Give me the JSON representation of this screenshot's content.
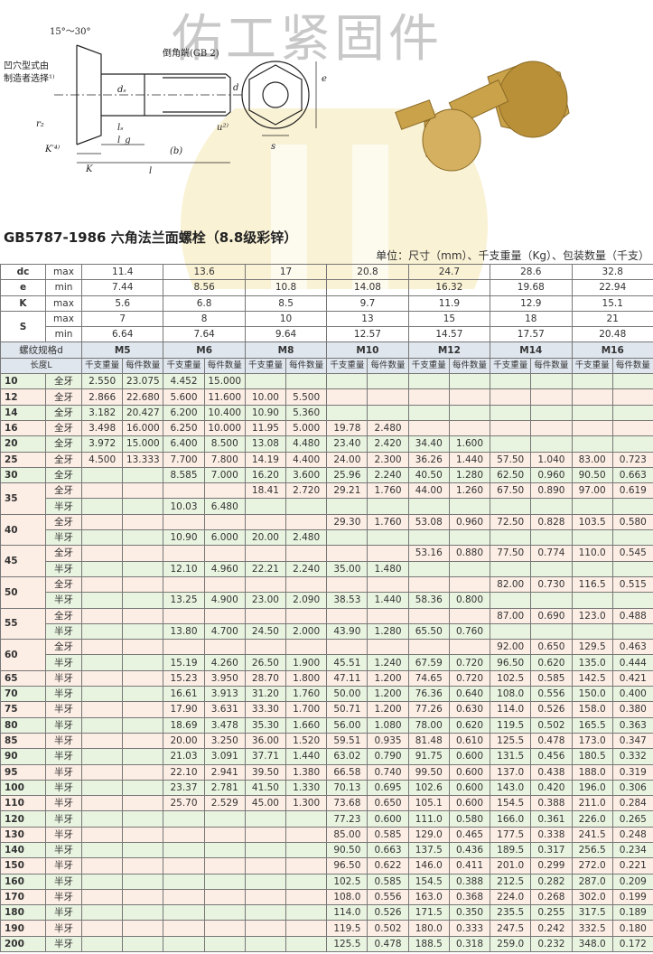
{
  "watermark": "佑工紧固件",
  "drawing": {
    "labels": [
      "15°～30°",
      "凹穴型式由",
      "制造者选择¹⁾",
      "倒角端(GB 2)",
      "dₛ",
      "d",
      "r₂",
      "K′⁴⁾",
      "K",
      "lₛ",
      "l_g",
      "(b)",
      "l",
      "u²⁾",
      "s",
      "e"
    ]
  },
  "title": "GB5787-1986 六角法兰面螺栓（8.8级彩锌）",
  "unit_note": "单位：尺寸（mm）、千支重量（Kg）、包装数量（千支）",
  "dimensions": [
    {
      "name": "dc",
      "rows": [
        {
          "limit": "max",
          "values": [
            "11.4",
            "13.6",
            "17",
            "20.8",
            "24.7",
            "28.6",
            "32.8"
          ]
        }
      ]
    },
    {
      "name": "e",
      "rows": [
        {
          "limit": "min",
          "values": [
            "7.44",
            "8.56",
            "10.8",
            "14.08",
            "16.32",
            "19.68",
            "22.94"
          ]
        }
      ]
    },
    {
      "name": "K",
      "rows": [
        {
          "limit": "max",
          "values": [
            "5.6",
            "6.8",
            "8.5",
            "9.7",
            "11.9",
            "12.9",
            "15.1"
          ]
        }
      ]
    },
    {
      "name": "S",
      "rows": [
        {
          "limit": "max",
          "values": [
            "7",
            "8",
            "10",
            "13",
            "15",
            "18",
            "21"
          ]
        },
        {
          "limit": "min",
          "values": [
            "6.64",
            "7.64",
            "9.64",
            "12.57",
            "14.57",
            "17.57",
            "20.48"
          ]
        }
      ]
    }
  ],
  "header": {
    "thread_label": "螺纹规格d",
    "sizes": [
      "M5",
      "M6",
      "M8",
      "M10",
      "M12",
      "M14",
      "M16"
    ],
    "length_label": "长度L",
    "sub_headers": [
      "千支重量",
      "每件数量"
    ]
  },
  "rows": [
    {
      "length": "10",
      "parts": [
        {
          "type": "全牙",
          "cells": [
            "2.550",
            "23.075",
            "4.452",
            "15.000",
            null,
            null,
            null,
            null,
            null,
            null,
            null,
            null,
            null,
            null
          ]
        }
      ]
    },
    {
      "length": "12",
      "parts": [
        {
          "type": "全牙",
          "cells": [
            "2.866",
            "22.680",
            "5.600",
            "11.600",
            "10.00",
            "5.500",
            null,
            null,
            null,
            null,
            null,
            null,
            null,
            null
          ]
        }
      ]
    },
    {
      "length": "14",
      "parts": [
        {
          "type": "全牙",
          "cells": [
            "3.182",
            "20.427",
            "6.200",
            "10.400",
            "10.90",
            "5.360",
            null,
            null,
            null,
            null,
            null,
            null,
            null,
            null
          ]
        }
      ]
    },
    {
      "length": "16",
      "parts": [
        {
          "type": "全牙",
          "cells": [
            "3.498",
            "16.000",
            "6.250",
            "10.000",
            "11.95",
            "5.000",
            "19.78",
            "2.480",
            null,
            null,
            null,
            null,
            null,
            null
          ]
        }
      ]
    },
    {
      "length": "20",
      "parts": [
        {
          "type": "全牙",
          "cells": [
            "3.972",
            "15.000",
            "6.400",
            "8.500",
            "13.08",
            "4.480",
            "23.40",
            "2.420",
            "34.40",
            "1.600",
            null,
            null,
            null,
            null
          ]
        }
      ]
    },
    {
      "length": "25",
      "parts": [
        {
          "type": "全牙",
          "cells": [
            "4.500",
            "13.333",
            "7.700",
            "7.800",
            "14.19",
            "4.400",
            "24.00",
            "2.300",
            "36.26",
            "1.440",
            "57.50",
            "1.040",
            "83.00",
            "0.723"
          ]
        }
      ]
    },
    {
      "length": "30",
      "parts": [
        {
          "type": "全牙",
          "cells": [
            null,
            null,
            "8.585",
            "7.000",
            "16.20",
            "3.600",
            "25.96",
            "2.240",
            "40.50",
            "1.280",
            "62.50",
            "0.960",
            "90.50",
            "0.663"
          ]
        }
      ]
    },
    {
      "length": "35",
      "parts": [
        {
          "type": "全牙",
          "cells": [
            null,
            null,
            null,
            null,
            "18.41",
            "2.720",
            "29.21",
            "1.760",
            "44.00",
            "1.260",
            "67.50",
            "0.890",
            "97.00",
            "0.619"
          ]
        },
        {
          "type": "半牙",
          "cells": [
            null,
            null,
            "10.03",
            "6.480",
            null,
            null,
            null,
            null,
            null,
            null,
            null,
            null,
            null,
            null
          ]
        }
      ]
    },
    {
      "length": "40",
      "parts": [
        {
          "type": "全牙",
          "cells": [
            null,
            null,
            null,
            null,
            null,
            null,
            "29.30",
            "1.760",
            "53.08",
            "0.960",
            "72.50",
            "0.828",
            "103.5",
            "0.580"
          ]
        },
        {
          "type": "半牙",
          "cells": [
            null,
            null,
            "10.90",
            "6.000",
            "20.00",
            "2.480",
            null,
            null,
            null,
            null,
            null,
            null,
            null,
            null
          ]
        }
      ]
    },
    {
      "length": "45",
      "parts": [
        {
          "type": "全牙",
          "cells": [
            null,
            null,
            null,
            null,
            null,
            null,
            null,
            null,
            "53.16",
            "0.880",
            "77.50",
            "0.774",
            "110.0",
            "0.545"
          ]
        },
        {
          "type": "半牙",
          "cells": [
            null,
            null,
            "12.10",
            "4.960",
            "22.21",
            "2.240",
            "35.00",
            "1.480",
            null,
            null,
            null,
            null,
            null,
            null
          ]
        }
      ]
    },
    {
      "length": "50",
      "parts": [
        {
          "type": "全牙",
          "cells": [
            null,
            null,
            null,
            null,
            null,
            null,
            null,
            null,
            null,
            null,
            "82.00",
            "0.730",
            "116.5",
            "0.515"
          ]
        },
        {
          "type": "半牙",
          "cells": [
            null,
            null,
            "13.25",
            "4.900",
            "23.00",
            "2.090",
            "38.53",
            "1.440",
            "58.36",
            "0.800",
            null,
            null,
            null,
            null
          ]
        }
      ]
    },
    {
      "length": "55",
      "parts": [
        {
          "type": "全牙",
          "cells": [
            null,
            null,
            null,
            null,
            null,
            null,
            null,
            null,
            null,
            null,
            "87.00",
            "0.690",
            "123.0",
            "0.488"
          ]
        },
        {
          "type": "半牙",
          "cells": [
            null,
            null,
            "13.80",
            "4.700",
            "24.50",
            "2.000",
            "43.90",
            "1.280",
            "65.50",
            "0.760",
            null,
            null,
            null,
            null
          ]
        }
      ]
    },
    {
      "length": "60",
      "parts": [
        {
          "type": "全牙",
          "cells": [
            null,
            null,
            null,
            null,
            null,
            null,
            null,
            null,
            null,
            null,
            "92.00",
            "0.650",
            "129.5",
            "0.463"
          ]
        },
        {
          "type": "半牙",
          "cells": [
            null,
            null,
            "15.19",
            "4.260",
            "26.50",
            "1.900",
            "45.51",
            "1.240",
            "67.59",
            "0.720",
            "96.50",
            "0.620",
            "135.0",
            "0.444"
          ]
        }
      ]
    },
    {
      "length": "65",
      "parts": [
        {
          "type": "半牙",
          "cells": [
            null,
            null,
            "15.23",
            "3.950",
            "28.70",
            "1.800",
            "47.11",
            "1.200",
            "74.65",
            "0.720",
            "102.5",
            "0.585",
            "142.5",
            "0.421"
          ]
        }
      ]
    },
    {
      "length": "70",
      "parts": [
        {
          "type": "半牙",
          "cells": [
            null,
            null,
            "16.61",
            "3.913",
            "31.20",
            "1.760",
            "50.00",
            "1.200",
            "76.36",
            "0.640",
            "108.0",
            "0.556",
            "150.0",
            "0.400"
          ]
        }
      ]
    },
    {
      "length": "75",
      "parts": [
        {
          "type": "半牙",
          "cells": [
            null,
            null,
            "17.90",
            "3.631",
            "33.30",
            "1.700",
            "50.71",
            "1.200",
            "77.26",
            "0.630",
            "114.0",
            "0.526",
            "158.0",
            "0.380"
          ]
        }
      ]
    },
    {
      "length": "80",
      "parts": [
        {
          "type": "半牙",
          "cells": [
            null,
            null,
            "18.69",
            "3.478",
            "35.30",
            "1.660",
            "56.00",
            "1.080",
            "78.00",
            "0.620",
            "119.5",
            "0.502",
            "165.5",
            "0.363"
          ]
        }
      ]
    },
    {
      "length": "85",
      "parts": [
        {
          "type": "半牙",
          "cells": [
            null,
            null,
            "20.00",
            "3.250",
            "36.00",
            "1.520",
            "59.51",
            "0.935",
            "81.48",
            "0.610",
            "125.5",
            "0.478",
            "173.0",
            "0.347"
          ]
        }
      ]
    },
    {
      "length": "90",
      "parts": [
        {
          "type": "半牙",
          "cells": [
            null,
            null,
            "21.03",
            "3.091",
            "37.71",
            "1.440",
            "63.02",
            "0.790",
            "91.75",
            "0.600",
            "131.5",
            "0.456",
            "180.5",
            "0.332"
          ]
        }
      ]
    },
    {
      "length": "95",
      "parts": [
        {
          "type": "半牙",
          "cells": [
            null,
            null,
            "22.10",
            "2.941",
            "39.50",
            "1.380",
            "66.58",
            "0.740",
            "99.50",
            "0.600",
            "137.0",
            "0.438",
            "188.0",
            "0.319"
          ]
        }
      ]
    },
    {
      "length": "100",
      "parts": [
        {
          "type": "半牙",
          "cells": [
            null,
            null,
            "23.37",
            "2.781",
            "41.50",
            "1.330",
            "70.13",
            "0.695",
            "102.6",
            "0.600",
            "143.0",
            "0.420",
            "196.0",
            "0.306"
          ]
        }
      ]
    },
    {
      "length": "110",
      "parts": [
        {
          "type": "半牙",
          "cells": [
            null,
            null,
            "25.70",
            "2.529",
            "45.00",
            "1.300",
            "73.68",
            "0.650",
            "105.1",
            "0.600",
            "154.5",
            "0.388",
            "211.0",
            "0.284"
          ]
        }
      ]
    },
    {
      "length": "120",
      "parts": [
        {
          "type": "半牙",
          "cells": [
            null,
            null,
            null,
            null,
            null,
            null,
            "77.23",
            "0.600",
            "111.0",
            "0.580",
            "166.0",
            "0.361",
            "226.0",
            "0.265"
          ]
        }
      ]
    },
    {
      "length": "130",
      "parts": [
        {
          "type": "半牙",
          "cells": [
            null,
            null,
            null,
            null,
            null,
            null,
            "85.00",
            "0.585",
            "129.0",
            "0.465",
            "177.5",
            "0.338",
            "241.5",
            "0.248"
          ]
        }
      ]
    },
    {
      "length": "140",
      "parts": [
        {
          "type": "半牙",
          "cells": [
            null,
            null,
            null,
            null,
            null,
            null,
            "90.50",
            "0.663",
            "137.5",
            "0.436",
            "189.5",
            "0.317",
            "256.5",
            "0.234"
          ]
        }
      ]
    },
    {
      "length": "150",
      "parts": [
        {
          "type": "半牙",
          "cells": [
            null,
            null,
            null,
            null,
            null,
            null,
            "96.50",
            "0.622",
            "146.0",
            "0.411",
            "201.0",
            "0.299",
            "272.0",
            "0.221"
          ]
        }
      ]
    },
    {
      "length": "160",
      "parts": [
        {
          "type": "半牙",
          "cells": [
            null,
            null,
            null,
            null,
            null,
            null,
            "102.5",
            "0.585",
            "154.5",
            "0.388",
            "212.5",
            "0.282",
            "287.0",
            "0.209"
          ]
        }
      ]
    },
    {
      "length": "170",
      "parts": [
        {
          "type": "半牙",
          "cells": [
            null,
            null,
            null,
            null,
            null,
            null,
            "108.0",
            "0.556",
            "163.0",
            "0.368",
            "224.0",
            "0.268",
            "302.0",
            "0.199"
          ]
        }
      ]
    },
    {
      "length": "180",
      "parts": [
        {
          "type": "半牙",
          "cells": [
            null,
            null,
            null,
            null,
            null,
            null,
            "114.0",
            "0.526",
            "171.5",
            "0.350",
            "235.5",
            "0.255",
            "317.5",
            "0.189"
          ]
        }
      ]
    },
    {
      "length": "190",
      "parts": [
        {
          "type": "半牙",
          "cells": [
            null,
            null,
            null,
            null,
            null,
            null,
            "119.5",
            "0.502",
            "180.0",
            "0.333",
            "247.5",
            "0.242",
            "332.5",
            "0.180"
          ]
        }
      ]
    },
    {
      "length": "200",
      "parts": [
        {
          "type": "半牙",
          "cells": [
            null,
            null,
            null,
            null,
            null,
            null,
            "125.5",
            "0.478",
            "188.5",
            "0.318",
            "259.0",
            "0.232",
            "348.0",
            "0.172"
          ]
        }
      ]
    }
  ]
}
